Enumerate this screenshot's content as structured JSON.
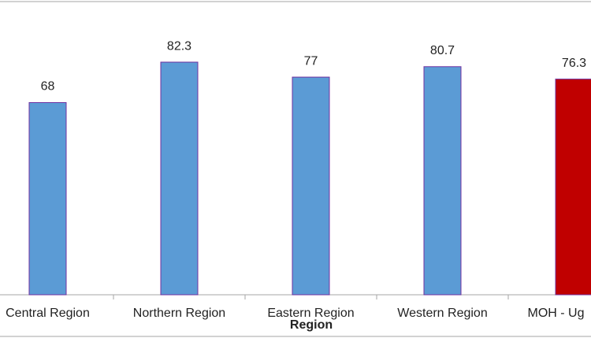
{
  "chart_data": {
    "type": "bar",
    "x_label": "Region",
    "categories": [
      "Central Region",
      "Northern Region",
      "Eastern Region",
      "Western Region",
      "MOH - Ug"
    ],
    "values": [
      68,
      82.3,
      77,
      80.7,
      76.3
    ],
    "colors": [
      "#5b9bd5",
      "#5b9bd5",
      "#5b9bd5",
      "#5b9bd5",
      "#c00000"
    ],
    "ylim": [
      0,
      104
    ]
  }
}
